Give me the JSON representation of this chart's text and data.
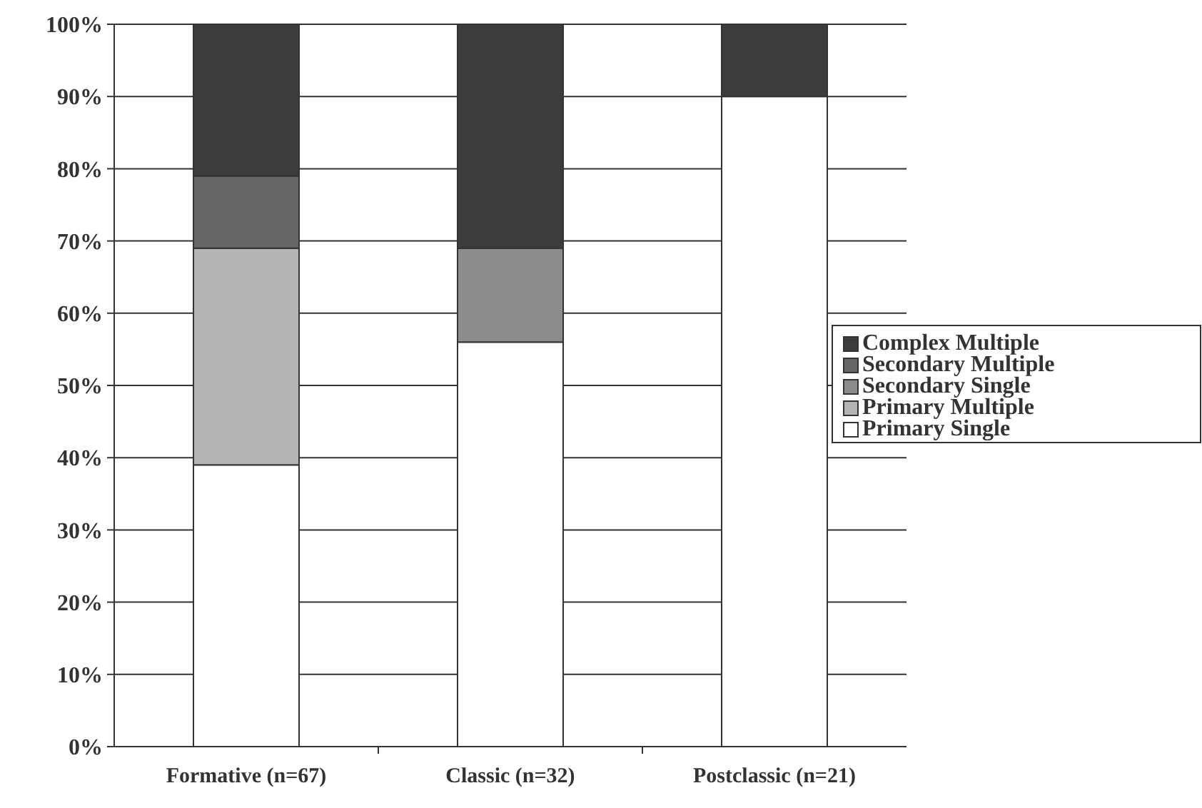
{
  "chart_data": {
    "type": "bar",
    "stacked": true,
    "categories": [
      "Formative (n=67)",
      "Classic (n=32)",
      "Postclassic (n=21)"
    ],
    "series": [
      {
        "name": "Primary Single",
        "color": "#ffffff",
        "values": [
          39,
          56,
          90
        ]
      },
      {
        "name": "Primary Multiple",
        "color": "#b4b4b4",
        "values": [
          30,
          0,
          0
        ]
      },
      {
        "name": "Secondary Single",
        "color": "#8c8c8c",
        "values": [
          0,
          13,
          0
        ]
      },
      {
        "name": "Secondary Multiple",
        "color": "#666666",
        "values": [
          10,
          0,
          0
        ]
      },
      {
        "name": "Complex Multiple",
        "color": "#3c3c3c",
        "values": [
          21,
          31,
          10
        ]
      }
    ],
    "ylim": [
      0,
      100
    ],
    "yticks": [
      {
        "value": 0,
        "label": "0%"
      },
      {
        "value": 10,
        "label": "10%"
      },
      {
        "value": 20,
        "label": "20%"
      },
      {
        "value": 30,
        "label": "30%"
      },
      {
        "value": 40,
        "label": "40%"
      },
      {
        "value": 50,
        "label": "50%"
      },
      {
        "value": 60,
        "label": "60%"
      },
      {
        "value": 70,
        "label": "70%"
      },
      {
        "value": 80,
        "label": "80%"
      },
      {
        "value": 90,
        "label": "90%"
      },
      {
        "value": 100,
        "label": "100%"
      }
    ],
    "grid": "y",
    "legend": "right"
  }
}
